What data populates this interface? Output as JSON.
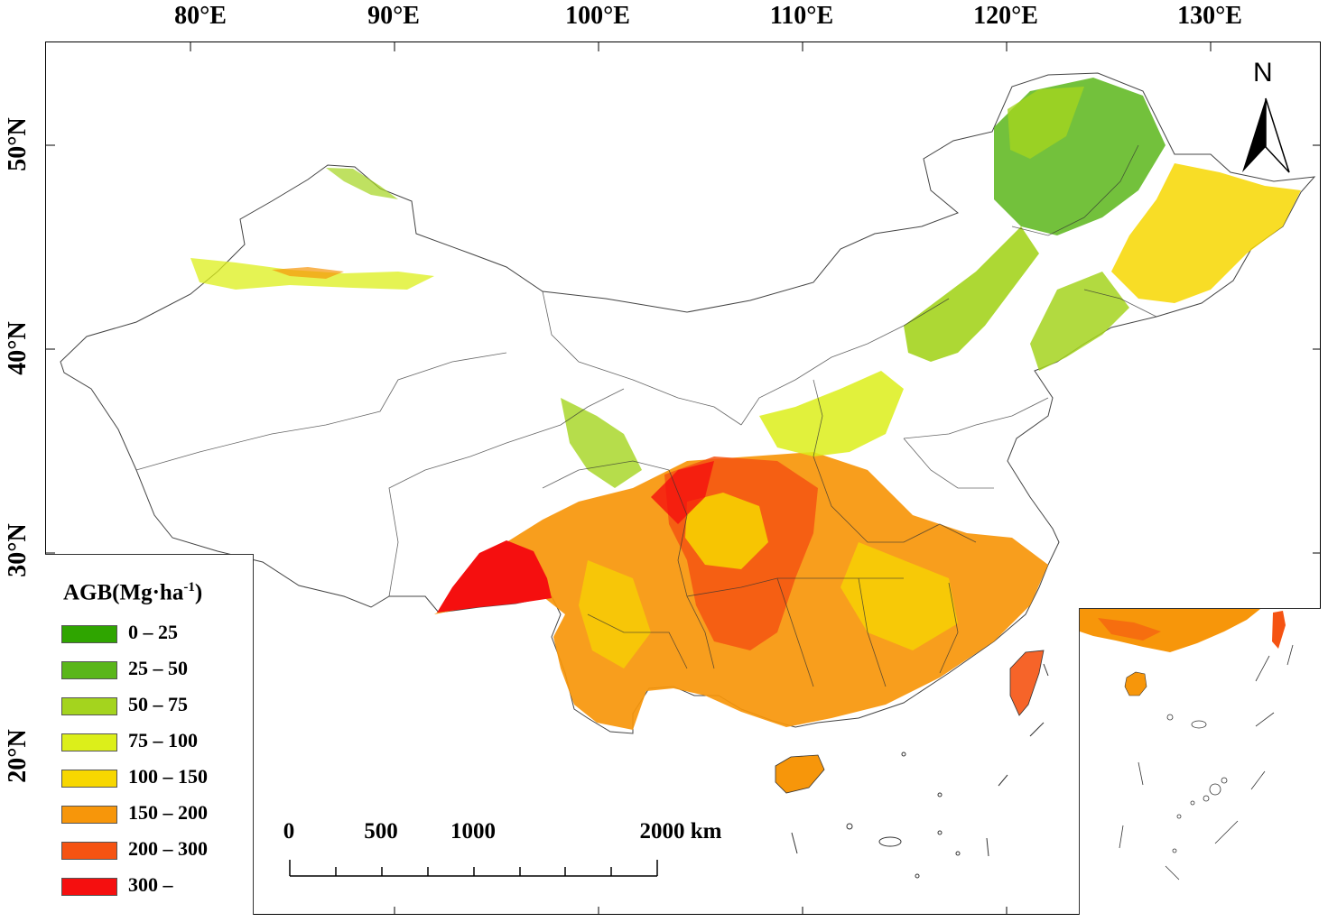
{
  "map": {
    "longitude_labels": [
      "80°E",
      "90°E",
      "100°E",
      "110°E",
      "120°E",
      "130°E"
    ],
    "latitude_labels": [
      "50°N",
      "40°N",
      "30°N",
      "20°N"
    ],
    "north_arrow_label": "N"
  },
  "legend": {
    "title": "AGB(Mg·ha",
    "title_superscript": "-1",
    "title_close": ")",
    "classes": [
      {
        "label": "0 – 25",
        "color": "#2fa500"
      },
      {
        "label": "25 – 50",
        "color": "#5ab61a"
      },
      {
        "label": "50 – 75",
        "color": "#a4d41e"
      },
      {
        "label": "75 – 100",
        "color": "#dcef1a"
      },
      {
        "label": "100 – 150",
        "color": "#f7d700"
      },
      {
        "label": "150 – 200",
        "color": "#f7960a"
      },
      {
        "label": "200 – 300",
        "color": "#f55312"
      },
      {
        "label": "300 –",
        "color": "#f50f0f"
      }
    ]
  },
  "scale_bar": {
    "labels": [
      "0",
      "500",
      "1000",
      "2000 km"
    ]
  }
}
